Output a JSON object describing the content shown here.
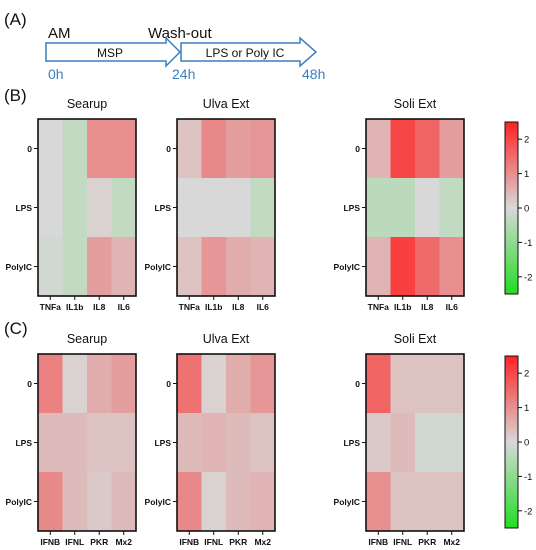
{
  "timeline": {
    "label_AM": "AM",
    "label_washout": "Wash-out",
    "arrow1_label": "MSP",
    "arrow2_label": "LPS or Poly IC",
    "t0": "0h",
    "t1": "24h",
    "t2": "48h",
    "time_color": "#3A7FC1",
    "arrow_color": "#3A7FC1"
  },
  "panel_labels": {
    "A": "(A)",
    "B": "(B)",
    "C": "(C)"
  },
  "colorscale": {
    "min": -2.5,
    "max": 2.5,
    "ticks": [
      "2",
      "1",
      "0",
      "-1",
      "-2"
    ],
    "tick_values": [
      2,
      1,
      0,
      -1,
      -2
    ],
    "colors": {
      "neg": "#22DD22",
      "mid": "#D8D8D8",
      "pos": "#FF2222"
    }
  },
  "rows": [
    "0",
    "LPS",
    "PolyIC"
  ],
  "chart_data": [
    {
      "type": "heatmap",
      "panel": "B",
      "title": "Searup",
      "columns": [
        "TNFa",
        "IL1b",
        "IL8",
        "IL6"
      ],
      "values": [
        [
          0.0,
          -0.3,
          1.0,
          1.0
        ],
        [
          0.0,
          -0.3,
          0.1,
          -0.3
        ],
        [
          -0.1,
          -0.3,
          0.8,
          0.5
        ]
      ]
    },
    {
      "type": "heatmap",
      "panel": "B",
      "title": "Ulva Ext",
      "columns": [
        "TNFa",
        "IL1b",
        "IL8",
        "IL6"
      ],
      "values": [
        [
          0.3,
          1.1,
          0.8,
          0.9
        ],
        [
          0.0,
          0.0,
          0.0,
          -0.3
        ],
        [
          0.3,
          0.9,
          0.6,
          0.5
        ]
      ]
    },
    {
      "type": "heatmap",
      "panel": "B",
      "title": "Soli Ext",
      "columns": [
        "TNFa",
        "IL1b",
        "IL8",
        "IL6"
      ],
      "values": [
        [
          0.5,
          2.0,
          1.6,
          0.8
        ],
        [
          -0.4,
          -0.4,
          0.0,
          -0.3
        ],
        [
          0.5,
          2.1,
          1.5,
          1.0
        ]
      ]
    },
    {
      "type": "heatmap",
      "panel": "C",
      "title": "Searup",
      "columns": [
        "IFNB",
        "IFNL",
        "PKR",
        "Mx2"
      ],
      "values": [
        [
          1.2,
          0.1,
          0.6,
          0.8
        ],
        [
          0.4,
          0.4,
          0.3,
          0.3
        ],
        [
          1.1,
          0.4,
          0.2,
          0.4
        ]
      ]
    },
    {
      "type": "heatmap",
      "panel": "C",
      "title": "Ulva Ext",
      "columns": [
        "IFNB",
        "IFNL",
        "PKR",
        "Mx2"
      ],
      "values": [
        [
          1.4,
          0.1,
          0.6,
          0.9
        ],
        [
          0.4,
          0.5,
          0.4,
          0.3
        ],
        [
          1.1,
          0.1,
          0.4,
          0.5
        ]
      ]
    },
    {
      "type": "heatmap",
      "panel": "C",
      "title": "Soli  Ext",
      "columns": [
        "IFNB",
        "IFNL",
        "PKR",
        "Mx2"
      ],
      "values": [
        [
          1.6,
          0.3,
          0.3,
          0.3
        ],
        [
          0.2,
          0.4,
          -0.1,
          -0.1
        ],
        [
          1.0,
          0.3,
          0.3,
          0.3
        ]
      ]
    }
  ]
}
